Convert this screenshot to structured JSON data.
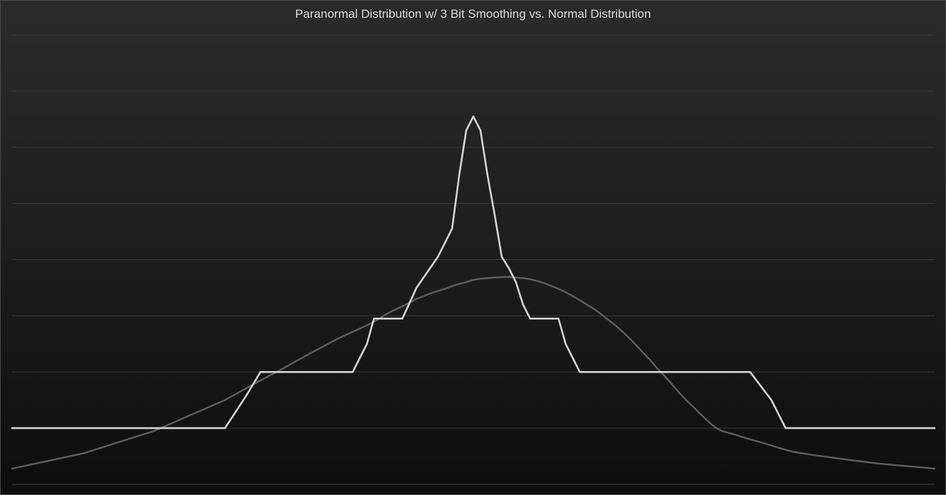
{
  "chart_data": {
    "type": "line",
    "title": "Paranormal Distribution w/ 3 Bit Smoothing vs. Normal Distribution",
    "xlabel": "",
    "ylabel": "",
    "grid": true,
    "legend": "none",
    "xlim": [
      0,
      130
    ],
    "ylim": [
      -1,
      7
    ],
    "x_positions": [
      0,
      10,
      20,
      30,
      34,
      38,
      42,
      46,
      50,
      51,
      52,
      53,
      54,
      55,
      56,
      57,
      58,
      59,
      60,
      61,
      62,
      63,
      64,
      65,
      66,
      67,
      68,
      69,
      70,
      71,
      72,
      73,
      74,
      75,
      76,
      77,
      78,
      79,
      80,
      81,
      82,
      83,
      84,
      85,
      86,
      87,
      88,
      89,
      90,
      91,
      92,
      93,
      94,
      95,
      96,
      97,
      98,
      99,
      100,
      110,
      120,
      130
    ],
    "series": [
      {
        "color": "#d3d3d3",
        "values": [
          0,
          0,
          0,
          0,
          0.58,
          1,
          1,
          1,
          1,
          1,
          1,
          1.25,
          1.5,
          1.95,
          1.95,
          1.95,
          1.95,
          1.95,
          2.5,
          3.05,
          3.55,
          4.5,
          5.3,
          5.55,
          5.3,
          4.5,
          3.8,
          3.05,
          2.85,
          2.6,
          2.2,
          1.95,
          1.95,
          1.95,
          1.95,
          1.95,
          1.5,
          1.25,
          1,
          1,
          1,
          1,
          1,
          1,
          1,
          1,
          1,
          1,
          1,
          1,
          1,
          1,
          1,
          1,
          1,
          1,
          0.5,
          0,
          0,
          0,
          0,
          0
        ],
        "x_override": [
          0,
          10,
          20,
          30,
          33,
          35,
          38,
          42,
          46,
          47,
          48,
          49,
          50,
          51,
          52,
          53,
          54,
          55,
          57,
          60,
          62,
          63,
          64,
          65,
          66,
          67,
          68,
          69,
          70,
          71,
          72,
          73,
          74,
          75,
          76,
          77,
          78,
          79,
          80,
          82,
          84,
          86,
          88,
          90,
          92,
          94,
          95,
          96,
          97,
          98,
          99,
          100,
          101,
          102,
          103,
          104,
          107,
          109,
          110,
          115,
          120,
          130
        ]
      },
      {
        "color": "#5e5e5e",
        "values": [
          -0.72,
          -0.45,
          -0.05,
          0.5,
          0.78,
          1.05,
          1.33,
          1.6,
          1.83,
          1.93,
          2.05,
          2.17,
          2.3,
          2.4,
          2.48,
          2.55,
          2.6,
          2.64,
          2.66,
          2.67,
          2.68,
          2.69,
          2.69,
          2.68,
          2.67,
          2.65,
          2.62,
          2.58,
          2.53,
          2.48,
          2.42,
          2.35,
          2.28,
          2.2,
          2.12,
          2.03,
          1.93,
          1.83,
          1.72,
          1.6,
          1.47,
          1.33,
          1.2,
          1.05,
          0.92,
          0.78,
          0.63,
          0.5,
          0.38,
          0.25,
          0.13,
          0.02,
          -0.05,
          -0.12,
          -0.2,
          -0.27,
          -0.35,
          -0.42,
          -0.48,
          -0.55,
          -0.63,
          -0.72
        ],
        "x_override": [
          0,
          10,
          20,
          30,
          34,
          38,
          42,
          46,
          50,
          51.5,
          53,
          55,
          57,
          59,
          61,
          62.5,
          64,
          65,
          66,
          67,
          68,
          69,
          70,
          71,
          72,
          73,
          74,
          75,
          76,
          77,
          78,
          79,
          80,
          81,
          82,
          83,
          84,
          85,
          86,
          87,
          88,
          89,
          90,
          91,
          92,
          93,
          94,
          95,
          96,
          97,
          98,
          99,
          100,
          102,
          104,
          106,
          108,
          110,
          113,
          117,
          122,
          130
        ]
      }
    ]
  }
}
